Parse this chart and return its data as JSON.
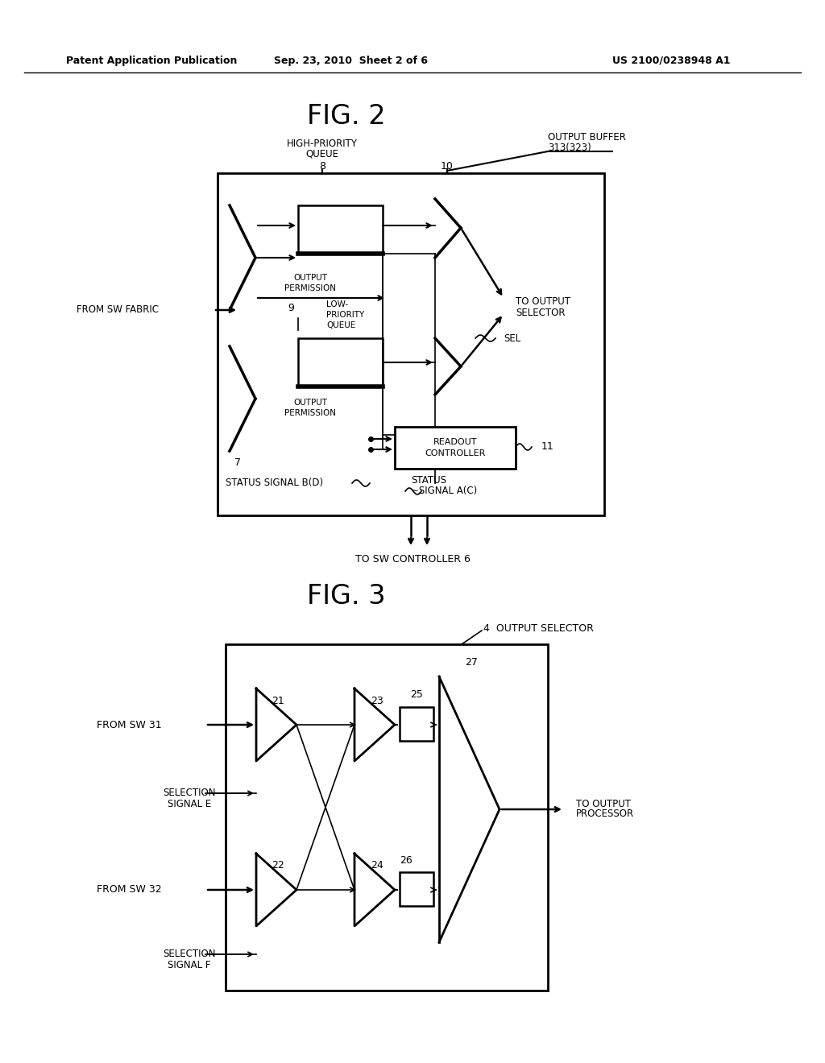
{
  "bg_color": "#ffffff",
  "header_left": "Patent Application Publication",
  "header_mid": "Sep. 23, 2010  Sheet 2 of 6",
  "header_right": "US 2100/0238948 A1",
  "fig2_title": "FIG. 2",
  "fig3_title": "FIG. 3",
  "label_high_priority": "HIGH-PRIORITY\nQUEUE",
  "label_8": "8",
  "label_10": "10",
  "label_output_buffer": "OUTPUT BUFFER\n313(323)",
  "label_from_sw_fabric": "FROM SW FABRIC",
  "label_to_output_selector": "TO OUTPUT\nSELECTOR",
  "label_output_permission": "OUTPUT\nPERMISSION",
  "label_low_priority": "LOW-\nPRIORITY\nQUEUE",
  "label_9": "9",
  "label_7": "7",
  "label_sel": "SEL",
  "label_readout_controller": "READOUT\nCONTROLLER",
  "label_11": "11",
  "label_status_b": "STATUS SIGNAL B(D)",
  "label_status_a": "STATUS\n~SIGNAL A(C)",
  "label_to_sw_controller": "TO SW CONTROLLER 6",
  "label_output_selector": "4  OUTPUT SELECTOR",
  "label_from_sw31": "FROM SW 31",
  "label_from_sw32": "FROM SW 32",
  "label_21": "21",
  "label_22": "22",
  "label_23": "23",
  "label_24": "24",
  "label_25": "25",
  "label_26": "26",
  "label_27": "27",
  "label_selection_e": "SELECTION\nSIGNAL E",
  "label_selection_f": "SELECTION\nSIGNAL F",
  "label_to_output_processor": "TO OUTPUT\nPROCESSOR"
}
